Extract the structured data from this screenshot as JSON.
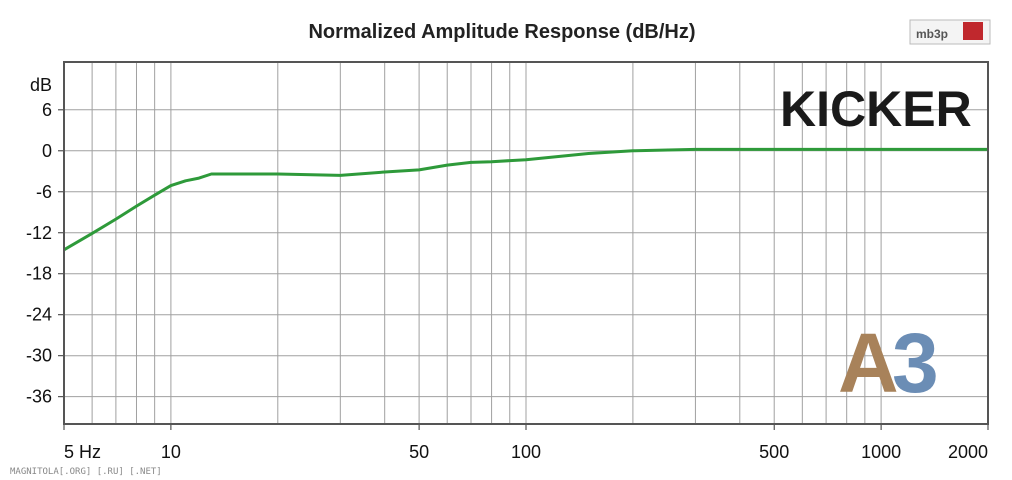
{
  "chart_data": {
    "type": "line",
    "title": "Normalized Amplitude Response (dB/Hz)",
    "xlabel": "",
    "ylabel": "dB",
    "x_scale": "log",
    "xlim": [
      5,
      2000
    ],
    "ylim": [
      -40,
      13
    ],
    "x_ticks": [
      5,
      10,
      50,
      100,
      500,
      1000,
      2000
    ],
    "x_tick_labels": [
      "5 Hz",
      "10",
      "50",
      "100",
      "500",
      "1000",
      "2000"
    ],
    "y_ticks": [
      6,
      0,
      -6,
      -12,
      -18,
      -24,
      -30,
      -36
    ],
    "y_tick_labels": [
      "6",
      "0",
      "-6",
      "-12",
      "-18",
      "-24",
      "-30",
      "-36"
    ],
    "grid": true,
    "series": [
      {
        "color": "#2e9a3a",
        "x": [
          5,
          6,
          7,
          8,
          9,
          10,
          11,
          12,
          13,
          20,
          30,
          40,
          50,
          60,
          70,
          80,
          100,
          150,
          200,
          300,
          500,
          1000,
          2000
        ],
        "y": [
          -14.5,
          -12.1,
          -10,
          -8.1,
          -6.5,
          -5.1,
          -4.4,
          -4,
          -3.4,
          -3.4,
          -3.6,
          -3.1,
          -2.8,
          -2.1,
          -1.7,
          -1.6,
          -1.3,
          -0.4,
          0,
          0.2,
          0.2,
          0.2,
          0.2
        ]
      }
    ]
  },
  "overlay": {
    "brand": "KICKER",
    "model_letter": "A",
    "model_number": "3",
    "logo": "mb3p",
    "logo_color": "#c0282d",
    "footer": "MAGNITOLA[.ORG] [.RU] [.NET]"
  }
}
